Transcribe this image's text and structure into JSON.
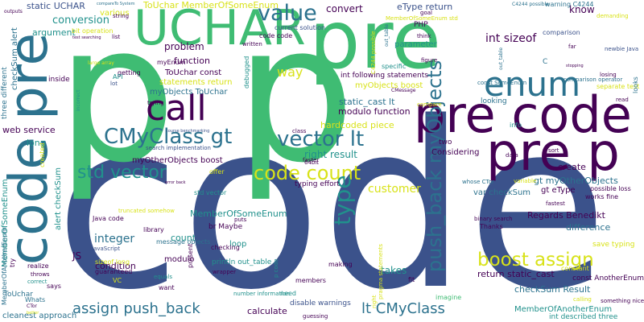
{
  "cloud": {
    "palette": {
      "dark_purple": "#440154",
      "indigo": "#3b518b",
      "steel": "#2c728e",
      "teal": "#21918c",
      "green": "#3fbc73",
      "lime": "#90d743",
      "yellow": "#d8e219"
    },
    "words": [
      {
        "text": "code",
        "color": "#3b528b"
      },
      {
        "text": "p",
        "color": "#3fbc73"
      },
      {
        "text": "p",
        "color": "#3fbc73"
      },
      {
        "text": "pre",
        "color": "#3fbc73"
      },
      {
        "text": "code pre",
        "color": "#2c728e"
      },
      {
        "text": "pre code",
        "color": "#440154"
      },
      {
        "text": "pre p",
        "color": "#440154"
      },
      {
        "text": "UCHAR",
        "color": "#3fbc73"
      },
      {
        "text": "enum",
        "color": "#2c728e"
      },
      {
        "text": "call",
        "color": "#440154"
      },
      {
        "text": "value",
        "color": "#2c728e"
      },
      {
        "text": "CMyClass gt",
        "color": "#2c728e"
      },
      {
        "text": "vector lt",
        "color": "#2c728e"
      },
      {
        "text": "std vector",
        "color": "#21918c"
      },
      {
        "text": "code count",
        "color": "#d8e219"
      },
      {
        "text": "boost assign",
        "color": "#d8e219"
      },
      {
        "text": "type",
        "color": "#21918c"
      },
      {
        "text": "lt CMyClass",
        "color": "#2c728e"
      },
      {
        "text": "assign push_back",
        "color": "#2c728e"
      },
      {
        "text": "push_back myObjects",
        "color": "#2c728e"
      },
      {
        "text": "customer",
        "color": "#d8e219"
      },
      {
        "text": "way",
        "color": "#d8e219"
      },
      {
        "text": "integer",
        "color": "#2c728e"
      },
      {
        "text": "problem",
        "color": "#440154"
      },
      {
        "text": "static UCHAR",
        "color": "#3b528b"
      },
      {
        "text": "conversion",
        "color": "#21918c"
      },
      {
        "text": "argument",
        "color": "#21918c"
      },
      {
        "text": "MemberOfSomeEnum",
        "color": "#21918c"
      },
      {
        "text": "ToUchar MemberOfSomeEnum",
        "color": "#d8e219"
      },
      {
        "text": "eType return",
        "color": "#3b528b"
      },
      {
        "text": "convert",
        "color": "#440154"
      },
      {
        "text": "know",
        "color": "#440154"
      },
      {
        "text": "create",
        "color": "#440154"
      },
      {
        "text": "gt eType",
        "color": "#440154"
      },
      {
        "text": "gt myOtherObjects",
        "color": "#2c728e"
      },
      {
        "text": "var checkSum",
        "color": "#2c728e"
      },
      {
        "text": "Regards Benedikt",
        "color": "#440154"
      },
      {
        "text": "difference",
        "color": "#2c728e"
      },
      {
        "text": "save typing",
        "color": "#d8e219"
      },
      {
        "text": "const AnotherEnum",
        "color": "#440154"
      },
      {
        "text": "checkSum Result",
        "color": "#2c728e"
      },
      {
        "text": "MemberOfAnotherEnum",
        "color": "#21918c"
      },
      {
        "text": "int described three",
        "color": "#21918c"
      },
      {
        "text": "return static_cast",
        "color": "#440154"
      },
      {
        "text": "calculate",
        "color": "#440154"
      },
      {
        "text": "takes",
        "color": "#21918c"
      },
      {
        "text": "loop",
        "color": "#21918c"
      },
      {
        "text": "count",
        "color": "#21918c"
      },
      {
        "text": "right result",
        "color": "#21918c"
      },
      {
        "text": "Considering",
        "color": "#440154"
      },
      {
        "text": "hardcoded piece",
        "color": "#d8e219"
      },
      {
        "text": "modulo function",
        "color": "#440154"
      },
      {
        "text": "static_cast lt",
        "color": "#2c728e"
      },
      {
        "text": "myObjects boost",
        "color": "#d8e219"
      },
      {
        "text": "int following statements",
        "color": "#440154"
      },
      {
        "text": "parameter",
        "color": "#21918c"
      },
      {
        "text": "PHP",
        "color": "#440154"
      },
      {
        "text": "function",
        "color": "#440154"
      },
      {
        "text": "statements return",
        "color": "#d8e219"
      },
      {
        "text": "ToUchar const",
        "color": "#440154"
      },
      {
        "text": "myObjects ToUchar",
        "color": "#2c728e"
      },
      {
        "text": "myOtherObjects boost",
        "color": "#440154"
      },
      {
        "text": "std vector",
        "color": "#21918c"
      },
      {
        "text": "modulo",
        "color": "#440154"
      },
      {
        "text": "condition",
        "color": "#440154"
      },
      {
        "text": "JS",
        "color": "#440154"
      },
      {
        "text": "web service",
        "color": "#440154"
      },
      {
        "text": "long",
        "color": "#21918c"
      },
      {
        "text": "alert checkSum",
        "color": "#21918c"
      },
      {
        "text": "checkSum alert",
        "color": "#2c728e"
      },
      {
        "text": "three different",
        "color": "#2c728e"
      },
      {
        "text": "MemberOfAnotherEnum",
        "color": "#2c728e"
      },
      {
        "text": "ToUchar",
        "color": "#2c728e"
      },
      {
        "text": "cleanest approach",
        "color": "#2c728e"
      },
      {
        "text": "Whats",
        "color": "#2c728e"
      },
      {
        "text": "guaranteed",
        "color": "#440154"
      },
      {
        "text": "println out_table",
        "color": "#21918c"
      },
      {
        "text": "br Maybe",
        "color": "#440154"
      },
      {
        "text": "typing effort",
        "color": "#440154"
      },
      {
        "text": "disable warnings",
        "color": "#3b528b"
      },
      {
        "text": "int sizeof",
        "color": "#440154"
      },
      {
        "text": "C",
        "color": "#2c728e"
      },
      {
        "text": "code code",
        "color": "#440154"
      },
      {
        "text": "current solution",
        "color": "#3b528b"
      },
      {
        "text": "inside",
        "color": "#440154"
      },
      {
        "text": "getting",
        "color": "#440154"
      },
      {
        "text": "list",
        "color": "#440154"
      },
      {
        "text": "trying",
        "color": "#440154"
      },
      {
        "text": "written",
        "color": "#440154"
      },
      {
        "text": "various",
        "color": "#d8e219"
      },
      {
        "text": "try",
        "color": "#440154"
      },
      {
        "text": "Java code",
        "color": "#440154"
      },
      {
        "text": "library",
        "color": "#440154"
      },
      {
        "text": "message objects",
        "color": "#2c728e"
      },
      {
        "text": "equals",
        "color": "#21918c"
      },
      {
        "text": "checking",
        "color": "#440154"
      },
      {
        "text": "puts",
        "color": "#440154"
      },
      {
        "text": "members",
        "color": "#440154"
      },
      {
        "text": "want",
        "color": "#440154"
      },
      {
        "text": "need",
        "color": "#21918c"
      },
      {
        "text": "guessing",
        "color": "#440154"
      },
      {
        "text": "making",
        "color": "#440154"
      },
      {
        "text": "fit",
        "color": "#440154"
      },
      {
        "text": "imagine",
        "color": "#3fbc73"
      },
      {
        "text": "Thanks",
        "color": "#440154"
      },
      {
        "text": "binary search",
        "color": "#440154"
      },
      {
        "text": "constant",
        "color": "#d8e219"
      },
      {
        "text": "fastest",
        "color": "#440154"
      },
      {
        "text": "works fine",
        "color": "#440154"
      },
      {
        "text": "possible loss",
        "color": "#440154"
      },
      {
        "text": "whose CTor",
        "color": "#2c728e"
      },
      {
        "text": "variable",
        "color": "#d8e219"
      },
      {
        "text": "data",
        "color": "#440154"
      },
      {
        "text": "sort",
        "color": "#440154"
      },
      {
        "text": "info",
        "color": "#21918c"
      },
      {
        "text": "two",
        "color": "#440154"
      },
      {
        "text": "class",
        "color": "#440154"
      },
      {
        "text": "faster",
        "color": "#440154"
      },
      {
        "text": "64bit",
        "color": "#440154"
      },
      {
        "text": "offer",
        "color": "#d8e219"
      },
      {
        "text": "wrapper",
        "color": "#440154"
      },
      {
        "text": "error back",
        "color": "#440154"
      },
      {
        "text": "course benchmarking",
        "color": "#3b528b"
      },
      {
        "text": "search implementation",
        "color": "#3b528b"
      },
      {
        "text": "truncated somehow",
        "color": "#d8e219"
      },
      {
        "text": "JavaScript",
        "color": "#3b528b"
      },
      {
        "text": "created",
        "color": "#d8e219"
      },
      {
        "text": "sizeof long",
        "color": "#d8e219"
      },
      {
        "text": "VC",
        "color": "#d8e219"
      },
      {
        "text": "correct",
        "color": "#21918c"
      },
      {
        "text": "realize",
        "color": "#440154"
      },
      {
        "text": "says",
        "color": "#440154"
      },
      {
        "text": "throws",
        "color": "#440154"
      },
      {
        "text": "CTor",
        "color": "#440154"
      },
      {
        "text": "better",
        "color": "#d8e219"
      },
      {
        "text": "bit operation",
        "color": "#d8e219"
      },
      {
        "text": "outputs",
        "color": "#440154"
      },
      {
        "text": "compareTo System",
        "color": "#2c728e"
      },
      {
        "text": "test searching",
        "color": "#440154"
      },
      {
        "text": "large array",
        "color": "#d8e219"
      },
      {
        "text": "myEnum",
        "color": "#440154"
      },
      {
        "text": "API",
        "color": "#21918c"
      },
      {
        "text": "lot",
        "color": "#3b528b"
      },
      {
        "text": "debugged",
        "color": "#440154"
      },
      {
        "text": "specific",
        "color": "#21918c"
      },
      {
        "text": "think",
        "color": "#440154"
      },
      {
        "text": "figure",
        "color": "#440154"
      },
      {
        "text": "CMessage",
        "color": "#440154"
      },
      {
        "text": "compare",
        "color": "#d8e219"
      },
      {
        "text": "const SomeEnum",
        "color": "#2c728e"
      },
      {
        "text": "looking",
        "color": "#2c728e"
      },
      {
        "text": "MemberOfSomeEnum std",
        "color": "#d8e219"
      },
      {
        "text": "goal",
        "color": "#440154"
      },
      {
        "text": "out_table",
        "color": "#440154"
      },
      {
        "text": "C4244 possible",
        "color": "#2c728e"
      },
      {
        "text": "warning C4244",
        "color": "#2c728e"
      },
      {
        "text": "demanding",
        "color": "#d8e219"
      },
      {
        "text": "comparison",
        "color": "#3b528b"
      },
      {
        "text": "far",
        "color": "#440154"
      },
      {
        "text": "newbie Java",
        "color": "#3b528b"
      },
      {
        "text": "looks",
        "color": "#440154"
      },
      {
        "text": "stopping",
        "color": "#440154"
      },
      {
        "text": "losing",
        "color": "#440154"
      },
      {
        "text": "comparison operator",
        "color": "#2c728e"
      },
      {
        "text": "separate test",
        "color": "#d8e219"
      },
      {
        "text": "read",
        "color": "#440154"
      },
      {
        "text": "incorrect",
        "color": "#2c728e"
      },
      {
        "text": "string",
        "color": "#440154"
      },
      {
        "text": "p code",
        "color": "#440154"
      },
      {
        "text": "number information",
        "color": "#21918c"
      },
      {
        "text": "right",
        "color": "#440154"
      },
      {
        "text": "pragma statements",
        "color": "#21918c"
      },
      {
        "text": "something nice",
        "color": "#440154"
      },
      {
        "text": "calling",
        "color": "#d8e219"
      },
      {
        "text": "present",
        "color": "#d8e219"
      },
      {
        "text": "modify",
        "color": "#440154"
      },
      {
        "text": "following",
        "color": "#440154"
      },
      {
        "text": "use",
        "color": "#440154"
      }
    ]
  }
}
